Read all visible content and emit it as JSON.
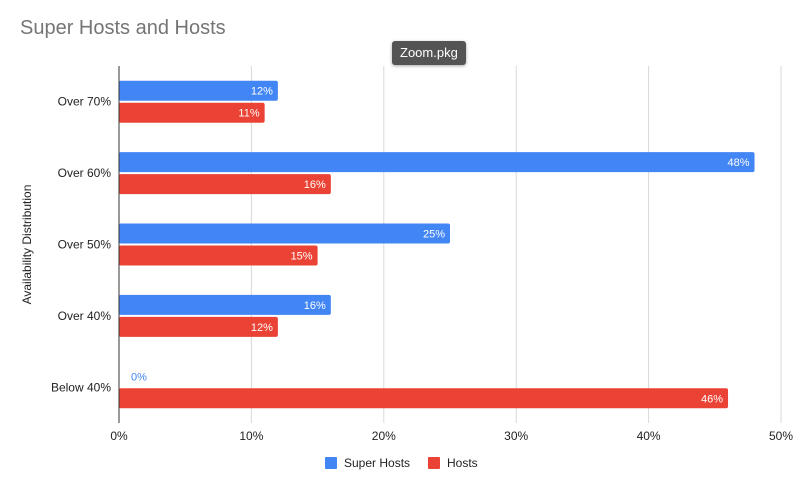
{
  "tooltip": "Zoom.pkg",
  "chart_data": {
    "type": "bar",
    "orientation": "horizontal",
    "title": "Super Hosts and Hosts",
    "xlabel": "",
    "ylabel": "Availability Distribution",
    "categories": [
      "Over 70%",
      "Over 60%",
      "Over 50%",
      "Over 40%",
      "Below 40%"
    ],
    "series": [
      {
        "name": "Super Hosts",
        "values": [
          12,
          48,
          25,
          16,
          0
        ],
        "labels": [
          "12%",
          "48%",
          "25%",
          "16%",
          "0%"
        ],
        "color": "#4285f4"
      },
      {
        "name": "Hosts",
        "values": [
          11,
          16,
          15,
          12,
          46
        ],
        "labels": [
          "11%",
          "16%",
          "15%",
          "12%",
          "46%"
        ],
        "color": "#ea4335"
      }
    ],
    "xlim": [
      0,
      50
    ],
    "xticks": [
      "0%",
      "10%",
      "20%",
      "30%",
      "40%",
      "50%"
    ],
    "grid": true,
    "legend": "bottom",
    "data_label_colors": {
      "inside": "#ffffff",
      "outside": "#4285f4"
    }
  }
}
